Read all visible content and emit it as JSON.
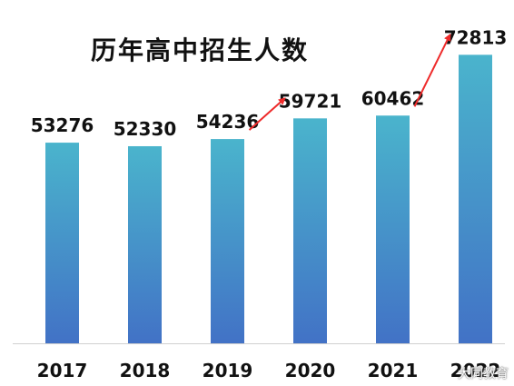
{
  "chart_data": {
    "type": "bar",
    "title": "历年高中招生人数",
    "categories": [
      "2017",
      "2018",
      "2019",
      "2020",
      "2021",
      "2022"
    ],
    "values": [
      53276,
      52330,
      54236,
      59721,
      60462,
      72813
    ],
    "data_labels": [
      "53276",
      "52330",
      "54236",
      "59721",
      "60462",
      "72813"
    ],
    "xlabel": "",
    "ylabel": "",
    "y_axis_visible": false,
    "grid": false,
    "legend": "none",
    "bar_gradient": {
      "top": "#4ab4cc",
      "bottom": "#4272c6"
    },
    "arrow_color": "#ee2a2a",
    "annotations": [
      {
        "type": "arrow",
        "from_category": "2019",
        "to_category": "2020",
        "color": "#ee2a2a"
      },
      {
        "type": "arrow",
        "from_category": "2021",
        "to_category": "2022",
        "color": "#ee2a2a"
      }
    ]
  },
  "watermark": "大同教育"
}
